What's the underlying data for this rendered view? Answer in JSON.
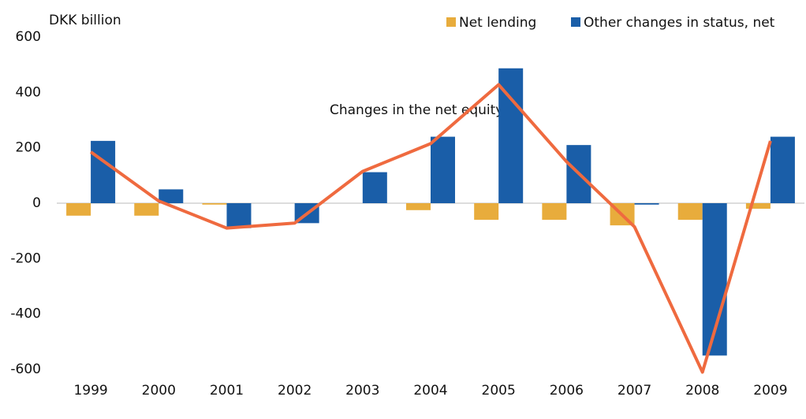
{
  "chart_data": {
    "type": "bar",
    "y_label": "DKK billion",
    "annotation": "Changes in the net equity",
    "categories": [
      "1999",
      "2000",
      "2001",
      "2002",
      "2003",
      "2004",
      "2005",
      "2006",
      "2007",
      "2008",
      "2009"
    ],
    "series": [
      {
        "name": "Net lending",
        "color": "#e8ac3c",
        "values": [
          -45,
          -45,
          -5,
          0,
          0,
          -25,
          -60,
          -60,
          -80,
          -60,
          -20
        ]
      },
      {
        "name": "Other changes in status, net",
        "color": "#1a5ea8",
        "values": [
          225,
          50,
          -90,
          -72,
          112,
          240,
          487,
          210,
          -5,
          -550,
          240
        ]
      }
    ],
    "line": {
      "color": "#ef6a3f",
      "values": [
        185,
        8,
        -90,
        -72,
        115,
        215,
        428,
        150,
        -85,
        -610,
        225
      ]
    },
    "ylim": [
      -600,
      600
    ],
    "yticks": [
      -600,
      -400,
      -200,
      0,
      200,
      400,
      600
    ],
    "legend": "top-right"
  }
}
